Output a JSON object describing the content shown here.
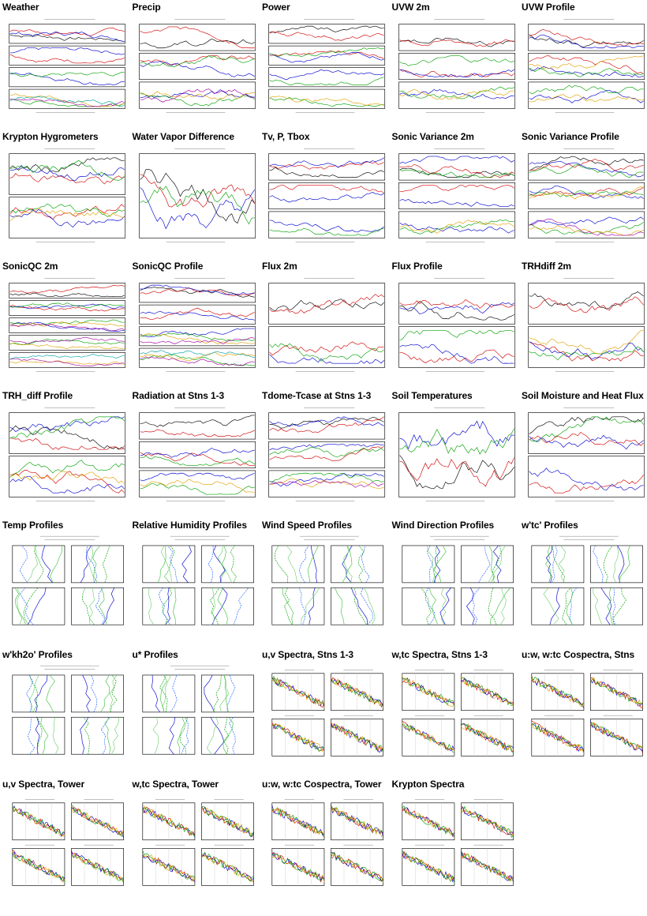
{
  "page": {
    "plots": [
      {
        "title": "Weather",
        "kind": "ts",
        "panels": 4
      },
      {
        "title": "Precip",
        "kind": "ts",
        "panels": 3
      },
      {
        "title": "Power",
        "kind": "ts",
        "panels": 4
      },
      {
        "title": "UVW 2m",
        "kind": "ts",
        "panels": 3
      },
      {
        "title": "UVW Profile",
        "kind": "ts",
        "panels": 3
      },
      {
        "title": "Krypton Hygrometers",
        "kind": "ts",
        "panels": 2
      },
      {
        "title": "Water Vapor Difference",
        "kind": "ts",
        "panels": 1
      },
      {
        "title": "Tv, P, Tbox",
        "kind": "ts",
        "panels": 3
      },
      {
        "title": "Sonic Variance 2m",
        "kind": "ts",
        "panels": 3
      },
      {
        "title": "Sonic Variance Profile",
        "kind": "ts",
        "panels": 3
      },
      {
        "title": "SonicQC 2m",
        "kind": "ts",
        "panels": 5
      },
      {
        "title": "SonicQC Profile",
        "kind": "ts",
        "panels": 4
      },
      {
        "title": "Flux 2m",
        "kind": "ts",
        "panels": 2
      },
      {
        "title": "Flux Profile",
        "kind": "ts",
        "panels": 2
      },
      {
        "title": "TRHdiff 2m",
        "kind": "ts",
        "panels": 2
      },
      {
        "title": "TRH_diff Profile",
        "kind": "ts",
        "panels": 2
      },
      {
        "title": "Radiation at Stns 1-3",
        "kind": "ts",
        "panels": 3
      },
      {
        "title": "Tdome-Tcase at Stns 1-3",
        "kind": "ts",
        "panels": 3
      },
      {
        "title": "Soil Temperatures",
        "kind": "ts",
        "panels": 1
      },
      {
        "title": "Soil Moisture and Heat Flux",
        "kind": "ts",
        "panels": 2
      },
      {
        "title": "Temp Profiles",
        "kind": "profile",
        "panels": 4
      },
      {
        "title": "Relative Humidity Profiles",
        "kind": "profile",
        "panels": 4
      },
      {
        "title": "Wind Speed Profiles",
        "kind": "profile",
        "panels": 4
      },
      {
        "title": "Wind Direction Profiles",
        "kind": "profile",
        "panels": 4
      },
      {
        "title": "w'tc' Profiles",
        "kind": "profile",
        "panels": 4
      },
      {
        "title": "w'kh2o' Profiles",
        "kind": "profile",
        "panels": 4
      },
      {
        "title": "u* Profiles",
        "kind": "profile",
        "panels": 4
      },
      {
        "title": "u,v Spectra, Stns 1-3",
        "kind": "spectra",
        "panels": 4
      },
      {
        "title": "w,tc Spectra, Stns 1-3",
        "kind": "spectra",
        "panels": 4
      },
      {
        "title": "u:w, w:tc Cospectra, Stns",
        "kind": "spectra",
        "panels": 4
      },
      {
        "title": "u,v Spectra, Tower",
        "kind": "spectra",
        "panels": 4
      },
      {
        "title": "w,tc Spectra, Tower",
        "kind": "spectra",
        "panels": 4
      },
      {
        "title": "u:w, w:tc Cospectra, Tower",
        "kind": "spectra",
        "panels": 4
      },
      {
        "title": "Krypton Spectra",
        "kind": "spectra",
        "panels": 4
      }
    ]
  },
  "colors": {
    "series": [
      "#000000",
      "#d00000",
      "#0000d0",
      "#00a000",
      "#e0a000",
      "#a000a0",
      "#00a0a0"
    ],
    "axis": "#000000"
  }
}
